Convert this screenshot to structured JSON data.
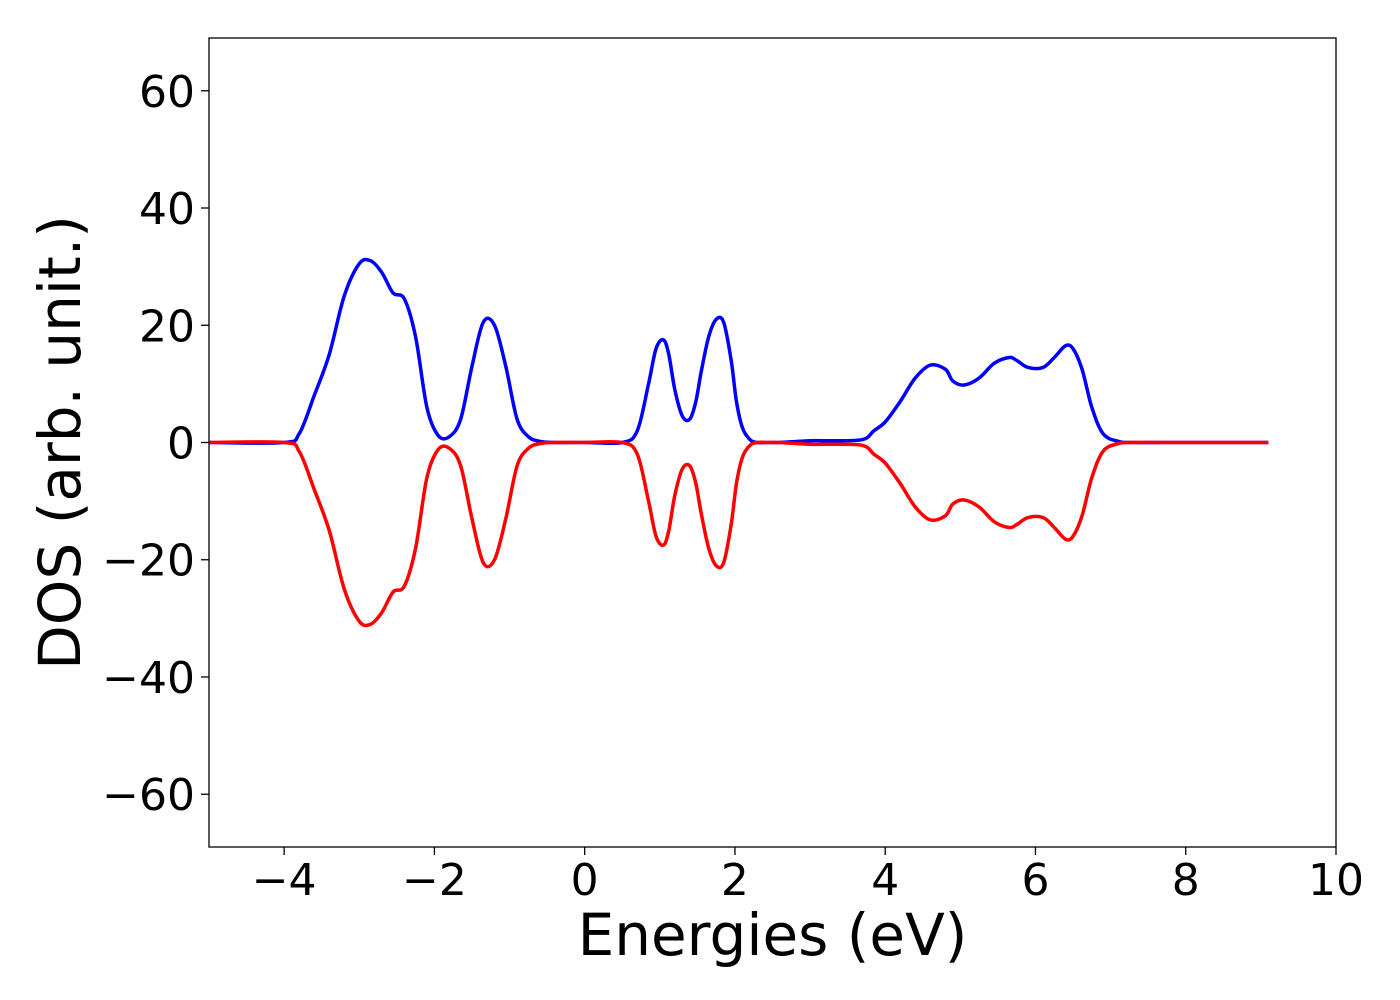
{
  "chart_data": {
    "type": "line",
    "title": "",
    "xlabel": "Energies (eV)",
    "ylabel": "DOS (arb. unit.)",
    "xlim": [
      -5,
      10
    ],
    "ylim": [
      -69,
      69
    ],
    "xticks": [
      -4,
      -2,
      0,
      2,
      4,
      6,
      8,
      10
    ],
    "yticks": [
      -60,
      -40,
      -20,
      0,
      20,
      40,
      60
    ],
    "xtick_labels": [
      "−4",
      "−2",
      "0",
      "2",
      "4",
      "6",
      "8",
      "10"
    ],
    "ytick_labels": [
      "−60",
      "−40",
      "−20",
      "0",
      "20",
      "40",
      "60"
    ],
    "grid": false,
    "legend": false,
    "series": [
      {
        "color": "#0000ff",
        "x": [
          -5,
          -4.0,
          -3.8,
          -3.6,
          -3.4,
          -3.2,
          -3.0,
          -2.85,
          -2.7,
          -2.55,
          -2.4,
          -2.25,
          -2.1,
          -1.95,
          -1.8,
          -1.65,
          -1.5,
          -1.35,
          -1.2,
          -1.05,
          -0.9,
          -0.75,
          -0.6,
          -0.4,
          0,
          0.5,
          0.7,
          0.85,
          0.95,
          1.05,
          1.12,
          1.2,
          1.3,
          1.4,
          1.48,
          1.55,
          1.65,
          1.75,
          1.85,
          1.95,
          2.02,
          2.1,
          2.2,
          2.3,
          2.45,
          2.6,
          3.0,
          3.3,
          3.7,
          3.85,
          4.0,
          4.2,
          4.4,
          4.6,
          4.8,
          4.9,
          5.05,
          5.25,
          5.45,
          5.65,
          5.75,
          5.9,
          6.1,
          6.25,
          6.4,
          6.5,
          6.62,
          6.75,
          6.9,
          7.1,
          7.3,
          8,
          9.1
        ],
        "y": [
          0,
          0,
          1.5,
          8,
          15,
          25,
          30.5,
          31,
          29,
          25.5,
          24.5,
          18,
          6,
          1.2,
          1,
          4,
          13,
          20.5,
          20,
          13,
          4,
          1,
          0.2,
          0,
          0,
          0,
          2,
          10,
          16,
          17.5,
          15,
          9,
          4.5,
          4,
          7,
          12,
          18,
          21,
          20.5,
          14,
          7,
          2.5,
          0.5,
          0,
          0,
          0,
          0.3,
          0.3,
          0.5,
          2,
          3.5,
          7,
          11,
          13.2,
          12.5,
          10.5,
          9.8,
          11,
          13.5,
          14.5,
          14,
          12.8,
          12.8,
          14.5,
          16.5,
          16,
          12.5,
          6,
          1.5,
          0.2,
          0,
          0,
          0
        ]
      },
      {
        "color": "#ff0000",
        "x": [
          -5,
          -4.0,
          -3.8,
          -3.6,
          -3.4,
          -3.2,
          -3.0,
          -2.85,
          -2.7,
          -2.55,
          -2.4,
          -2.25,
          -2.1,
          -1.95,
          -1.8,
          -1.65,
          -1.5,
          -1.35,
          -1.2,
          -1.05,
          -0.9,
          -0.75,
          -0.6,
          -0.4,
          0,
          0.5,
          0.7,
          0.85,
          0.95,
          1.05,
          1.12,
          1.2,
          1.3,
          1.4,
          1.48,
          1.55,
          1.65,
          1.75,
          1.85,
          1.95,
          2.02,
          2.1,
          2.2,
          2.3,
          2.45,
          2.6,
          3.0,
          3.3,
          3.7,
          3.85,
          4.0,
          4.2,
          4.4,
          4.6,
          4.8,
          4.9,
          5.05,
          5.25,
          5.45,
          5.65,
          5.75,
          5.9,
          6.1,
          6.25,
          6.4,
          6.5,
          6.62,
          6.75,
          6.9,
          7.1,
          7.3,
          8,
          9.1
        ],
        "y": [
          0,
          0,
          -1.5,
          -8,
          -15,
          -25,
          -30.5,
          -31,
          -29,
          -25.5,
          -24.5,
          -18,
          -6,
          -1.2,
          -1,
          -4,
          -13,
          -20.5,
          -20,
          -13,
          -4,
          -1,
          -0.2,
          0,
          0,
          0,
          -2,
          -10,
          -16,
          -17.5,
          -15,
          -9,
          -4.5,
          -4,
          -7,
          -12,
          -18,
          -21,
          -20.5,
          -14,
          -7,
          -2.5,
          -0.5,
          0,
          0,
          0,
          -0.3,
          -0.3,
          -0.5,
          -2,
          -3.5,
          -7,
          -11,
          -13.2,
          -12.5,
          -10.5,
          -9.8,
          -11,
          -13.5,
          -14.5,
          -14,
          -12.8,
          -12.8,
          -14.5,
          -16.5,
          -16,
          -12.5,
          -6,
          -1.5,
          -0.2,
          0,
          0,
          0
        ]
      }
    ]
  }
}
